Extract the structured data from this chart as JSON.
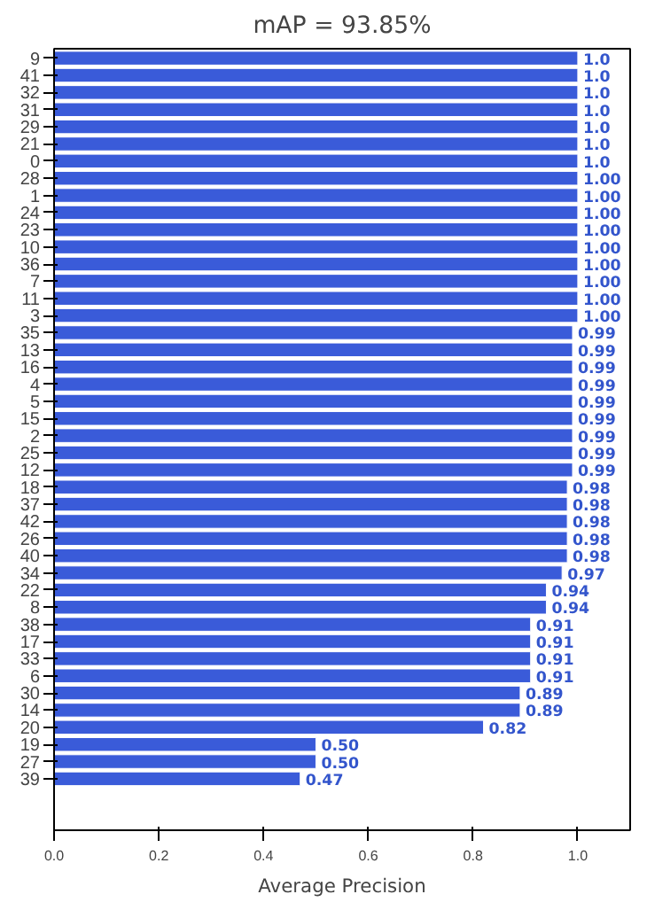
{
  "chart_data": {
    "type": "bar",
    "orientation": "horizontal",
    "title": "mAP = 93.85%",
    "xlabel": "Average Precision",
    "categories": [
      "9",
      "41",
      "32",
      "31",
      "29",
      "21",
      "0",
      "28",
      "1",
      "24",
      "23",
      "10",
      "36",
      "7",
      "11",
      "3",
      "35",
      "13",
      "16",
      "4",
      "5",
      "15",
      "2",
      "25",
      "12",
      "18",
      "37",
      "42",
      "26",
      "40",
      "34",
      "22",
      "8",
      "38",
      "17",
      "33",
      "6",
      "30",
      "14",
      "20",
      "19",
      "27",
      "39"
    ],
    "values": [
      1.0,
      1.0,
      1.0,
      1.0,
      1.0,
      1.0,
      1.0,
      1.0,
      1.0,
      1.0,
      1.0,
      1.0,
      1.0,
      1.0,
      1.0,
      1.0,
      0.99,
      0.99,
      0.99,
      0.99,
      0.99,
      0.99,
      0.99,
      0.99,
      0.99,
      0.98,
      0.98,
      0.98,
      0.98,
      0.98,
      0.97,
      0.94,
      0.94,
      0.91,
      0.91,
      0.91,
      0.91,
      0.89,
      0.89,
      0.82,
      0.5,
      0.5,
      0.47
    ],
    "value_labels": [
      "1.0",
      "1.0",
      "1.0",
      "1.0",
      "1.0",
      "1.0",
      "1.0",
      "1.00",
      "1.00",
      "1.00",
      "1.00",
      "1.00",
      "1.00",
      "1.00",
      "1.00",
      "1.00",
      "0.99",
      "0.99",
      "0.99",
      "0.99",
      "0.99",
      "0.99",
      "0.99",
      "0.99",
      "0.99",
      "0.98",
      "0.98",
      "0.98",
      "0.98",
      "0.98",
      "0.97",
      "0.94",
      "0.94",
      "0.91",
      "0.91",
      "0.91",
      "0.91",
      "0.89",
      "0.89",
      "0.82",
      "0.50",
      "0.50",
      "0.47"
    ],
    "color": "#3a5bd9",
    "xlim": [
      0,
      1.1
    ],
    "xticks": [
      {
        "value": 0,
        "label": "0.0"
      },
      0.2,
      0.4,
      0.6,
      0.8,
      {
        "value": 1.0,
        "label": "1.0"
      }
    ],
    "grid": false
  }
}
